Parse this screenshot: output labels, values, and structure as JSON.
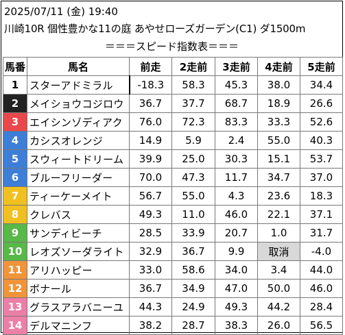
{
  "header": {
    "line1": "2025/07/11 (金) 19:40",
    "line2": "川崎10R 個性豊かな11の庭 あやせローズガーデン(C1) ダ1500m",
    "banner": "＝＝＝スピード指数表＝＝＝"
  },
  "table": {
    "columns": [
      "馬番",
      "馬名",
      "前走",
      "2走前",
      "3走前",
      "4走前",
      "5走前"
    ],
    "rows": [
      {
        "num": "1",
        "name": "スターアドミラル",
        "vals": [
          "-18.3",
          "58.3",
          "45.3",
          "38.0",
          "34.4"
        ],
        "color": "#ffffff",
        "text": "#000000"
      },
      {
        "num": "2",
        "name": "メイショウコジロウ",
        "vals": [
          "36.7",
          "37.7",
          "68.7",
          "18.9",
          "26.6"
        ],
        "color": "#222222",
        "text": "#ffffff"
      },
      {
        "num": "3",
        "name": "エイシンゾディアク",
        "vals": [
          "76.0",
          "72.3",
          "83.3",
          "33.3",
          "52.6"
        ],
        "color": "#e8474b",
        "text": "#ffffff"
      },
      {
        "num": "4",
        "name": "カシスオレンジ",
        "vals": [
          "14.9",
          "5.9",
          "2.4",
          "55.0",
          "40.3"
        ],
        "color": "#3d7ed8",
        "text": "#ffffff"
      },
      {
        "num": "5",
        "name": "スウィートドリーム",
        "vals": [
          "39.9",
          "25.0",
          "30.3",
          "15.1",
          "53.7"
        ],
        "color": "#3d7ed8",
        "text": "#ffffff"
      },
      {
        "num": "6",
        "name": "ブルーフリーダー",
        "vals": [
          "70.0",
          "47.3",
          "11.7",
          "34.7",
          "37.0"
        ],
        "color": "#3d7ed8",
        "text": "#ffffff"
      },
      {
        "num": "7",
        "name": "ティーケーメイト",
        "vals": [
          "56.7",
          "55.0",
          "4.3",
          "23.6",
          "18.3"
        ],
        "color": "#f0c020",
        "text": "#ffffff"
      },
      {
        "num": "8",
        "name": "クレバス",
        "vals": [
          "49.3",
          "11.0",
          "46.0",
          "22.1",
          "37.1"
        ],
        "color": "#f0c020",
        "text": "#ffffff"
      },
      {
        "num": "9",
        "name": "サンディビーチ",
        "vals": [
          "28.5",
          "33.9",
          "20.7",
          "1.0",
          "31.7"
        ],
        "color": "#58b848",
        "text": "#ffffff"
      },
      {
        "num": "10",
        "name": "レオズソーダライト",
        "vals": [
          "32.9",
          "36.7",
          "9.9",
          "取消",
          "-4.0"
        ],
        "color": "#58b848",
        "text": "#ffffff"
      },
      {
        "num": "11",
        "name": "アリハッピー",
        "vals": [
          "33.0",
          "58.6",
          "34.0",
          "3.4",
          "44.0"
        ],
        "color": "#f0943a",
        "text": "#ffffff"
      },
      {
        "num": "12",
        "name": "ボナール",
        "vals": [
          "36.7",
          "34.9",
          "47.0",
          "50.0",
          "46.0"
        ],
        "color": "#f0943a",
        "text": "#ffffff"
      },
      {
        "num": "13",
        "name": "グラスアラバニーユ",
        "vals": [
          "44.3",
          "24.9",
          "49.3",
          "44.2",
          "28.4"
        ],
        "color": "#ec7fa6",
        "text": "#ffffff"
      },
      {
        "num": "14",
        "name": "デルマニンフ",
        "vals": [
          "38.2",
          "28.7",
          "38.3",
          "26.0",
          "56.5"
        ],
        "color": "#ec7fa6",
        "text": "#ffffff"
      }
    ]
  }
}
